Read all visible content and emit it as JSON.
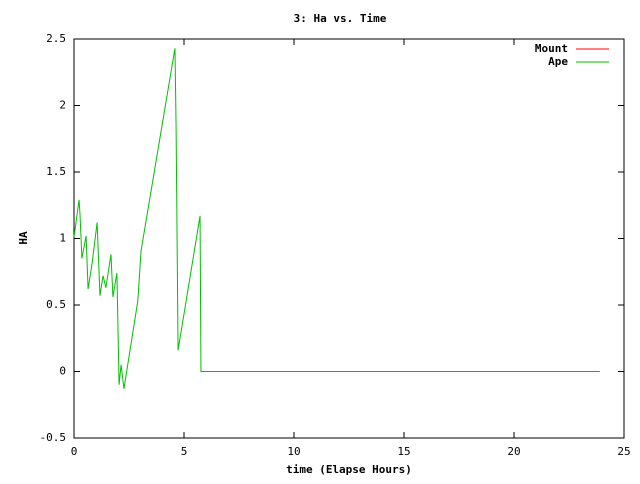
{
  "chart_data": {
    "type": "line",
    "title": "3: Ha vs. Time",
    "xlabel": "time (Elapse Hours)",
    "ylabel": "HA",
    "x": [
      0,
      0.23,
      0.27,
      0.36,
      0.55,
      0.64,
      0.82,
      1.05,
      1.18,
      1.32,
      1.45,
      1.68,
      1.77,
      1.95,
      2.05,
      2.14,
      2.27,
      2.9,
      3.05,
      4.59,
      4.64,
      4.73,
      5.73,
      5.77,
      23.9
    ],
    "series": [
      {
        "name": "Mount",
        "color": "#ff0000",
        "values": [
          null,
          null,
          null,
          null,
          null,
          null,
          null,
          null,
          null,
          null,
          null,
          null,
          null,
          null,
          null,
          null,
          null,
          null,
          null,
          null,
          null,
          null,
          null,
          null,
          null
        ]
      },
      {
        "name": "Ape",
        "color": "#00c000",
        "values": [
          1.01,
          1.29,
          1.19,
          0.85,
          1.02,
          0.62,
          0.81,
          1.12,
          0.57,
          0.72,
          0.63,
          0.88,
          0.56,
          0.74,
          -0.1,
          0.05,
          -0.13,
          0.53,
          0.91,
          2.43,
          1.85,
          0.16,
          1.17,
          0,
          0
        ]
      }
    ],
    "xlim": [
      0,
      25
    ],
    "xticks": [
      0,
      5,
      10,
      15,
      20,
      25
    ],
    "ylim": [
      -0.5,
      2.5
    ],
    "yticks": [
      -0.5,
      0,
      0.5,
      1,
      1.5,
      2,
      2.5
    ],
    "legend": "top-right"
  }
}
